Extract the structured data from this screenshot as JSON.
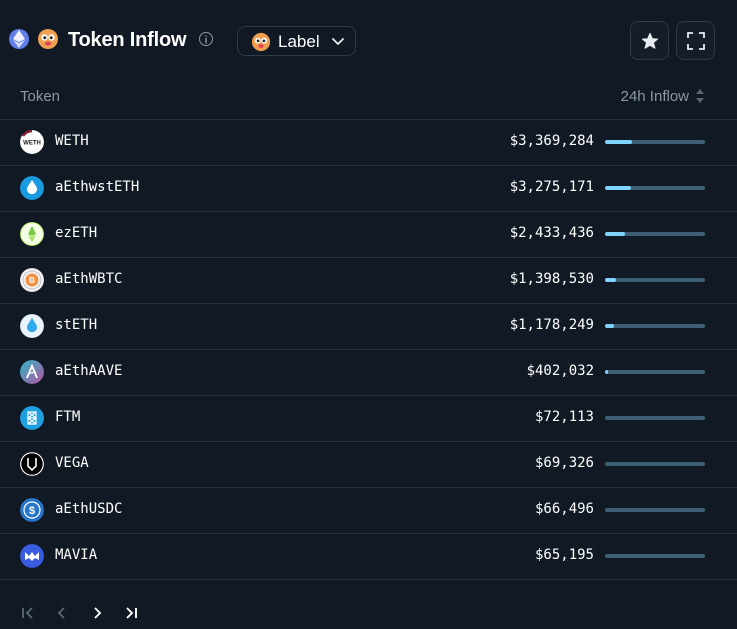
{
  "header": {
    "title": "Token Inflow",
    "label_button": "Label"
  },
  "columns": {
    "token": "Token",
    "inflow": "24h Inflow"
  },
  "rows": [
    {
      "name": "WETH",
      "value": "$3,369,284",
      "share": 0.27,
      "icon": "weth-icon",
      "color": "#8b1a2b"
    },
    {
      "name": "aEthwstETH",
      "value": "$3,275,171",
      "share": 0.26,
      "icon": "wsteth-drop-icon",
      "color": "#1a9be0"
    },
    {
      "name": "ezETH",
      "value": "$2,433,436",
      "share": 0.2,
      "icon": "ezeth-icon",
      "color": "#b8f06a"
    },
    {
      "name": "aEthWBTC",
      "value": "$1,398,530",
      "share": 0.11,
      "icon": "bitcoin-icon",
      "color": "#f09242"
    },
    {
      "name": "stETH",
      "value": "$1,178,249",
      "share": 0.09,
      "icon": "steth-drop-icon",
      "color": "#30a8f0"
    },
    {
      "name": "aEthAAVE",
      "value": "$402,032",
      "share": 0.03,
      "icon": "aave-icon",
      "color": "#b6509e"
    },
    {
      "name": "FTM",
      "value": "$72,113",
      "share": 0.0,
      "icon": "fantom-icon",
      "color": "#1ea0e0"
    },
    {
      "name": "VEGA",
      "value": "$69,326",
      "share": 0.0,
      "icon": "vega-icon",
      "color": "#000000"
    },
    {
      "name": "aEthUSDC",
      "value": "$66,496",
      "share": 0.0,
      "icon": "usdc-icon",
      "color": "#2775ca"
    },
    {
      "name": "MAVIA",
      "value": "$65,195",
      "share": 0.0,
      "icon": "mavia-icon",
      "color": "#3a5ce0"
    }
  ],
  "colors": {
    "background": "#111a24",
    "bar_fill": "#7fd4ff",
    "bar_track": "#3e5f73"
  }
}
